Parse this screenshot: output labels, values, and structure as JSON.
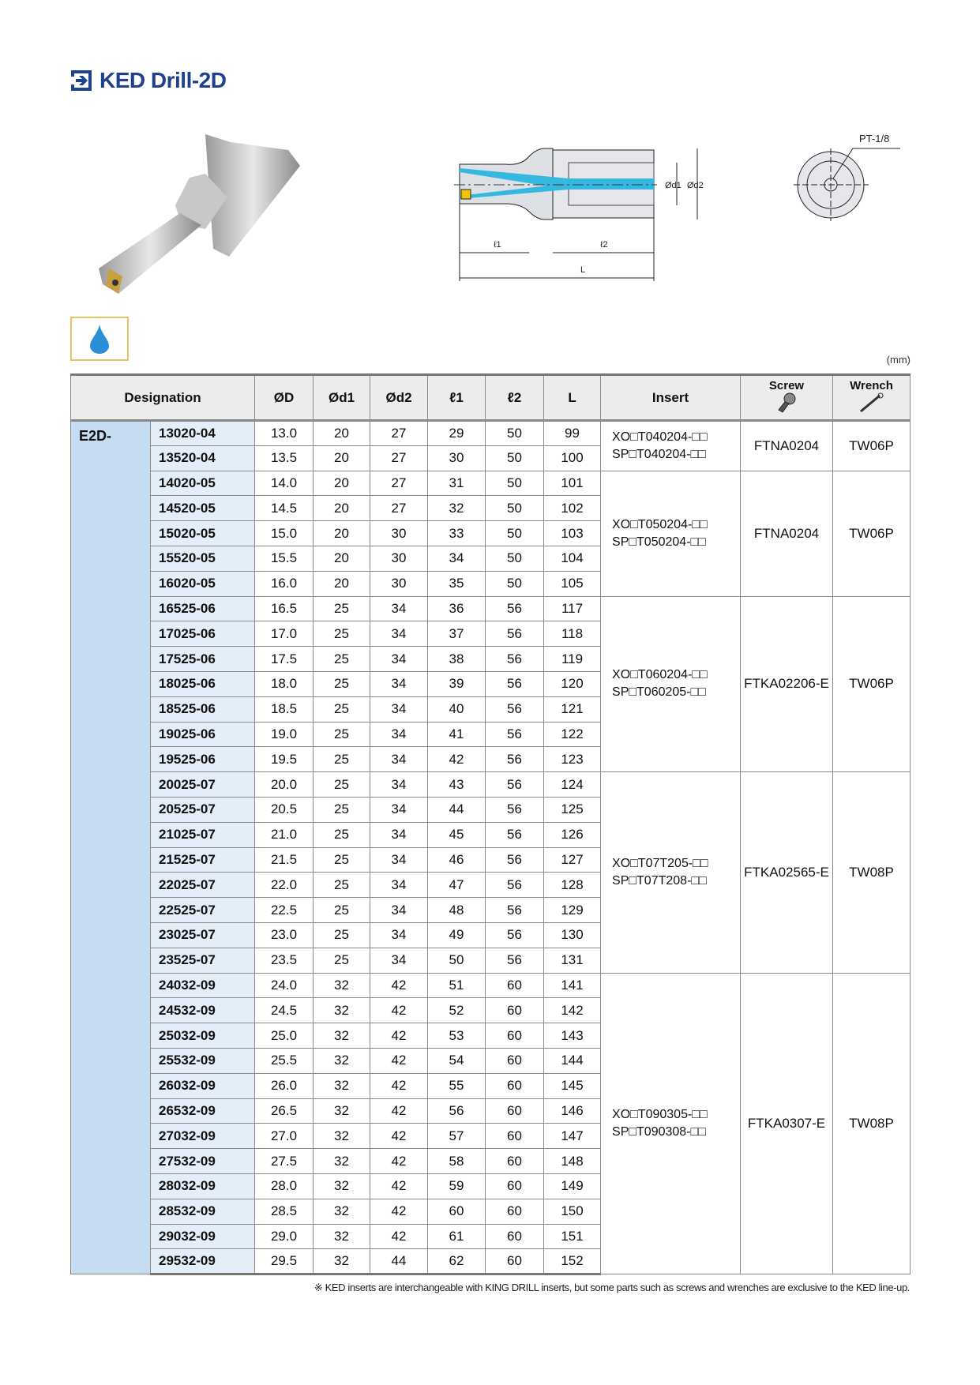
{
  "title": "KED Drill-2D",
  "drawing_labels": {
    "D": "ØD",
    "d1": "Ød1",
    "d2": "Ød2",
    "l1": "ℓ1",
    "l2": "ℓ2",
    "L": "L",
    "port": "PT-1/8"
  },
  "unit": "(mm)",
  "colors": {
    "title": "#1f3f8f",
    "designation_bg": "#c5dcf1",
    "code_bg": "#e4eef9",
    "coolant": "#2a8fd6"
  },
  "table": {
    "headers": {
      "designation": "Designation",
      "D": "ØD",
      "d1": "Ød1",
      "d2": "Ød2",
      "l1": "ℓ1",
      "l2": "ℓ2",
      "L": "L",
      "insert": "Insert",
      "screw": "Screw",
      "wrench": "Wrench"
    },
    "prefix": "E2D-",
    "rows": [
      [
        "13020-04",
        "13.0",
        "20",
        "27",
        "29",
        "50",
        "99"
      ],
      [
        "13520-04",
        "13.5",
        "20",
        "27",
        "30",
        "50",
        "100"
      ],
      [
        "14020-05",
        "14.0",
        "20",
        "27",
        "31",
        "50",
        "101"
      ],
      [
        "14520-05",
        "14.5",
        "20",
        "27",
        "32",
        "50",
        "102"
      ],
      [
        "15020-05",
        "15.0",
        "20",
        "30",
        "33",
        "50",
        "103"
      ],
      [
        "15520-05",
        "15.5",
        "20",
        "30",
        "34",
        "50",
        "104"
      ],
      [
        "16020-05",
        "16.0",
        "20",
        "30",
        "35",
        "50",
        "105"
      ],
      [
        "16525-06",
        "16.5",
        "25",
        "34",
        "36",
        "56",
        "117"
      ],
      [
        "17025-06",
        "17.0",
        "25",
        "34",
        "37",
        "56",
        "118"
      ],
      [
        "17525-06",
        "17.5",
        "25",
        "34",
        "38",
        "56",
        "119"
      ],
      [
        "18025-06",
        "18.0",
        "25",
        "34",
        "39",
        "56",
        "120"
      ],
      [
        "18525-06",
        "18.5",
        "25",
        "34",
        "40",
        "56",
        "121"
      ],
      [
        "19025-06",
        "19.0",
        "25",
        "34",
        "41",
        "56",
        "122"
      ],
      [
        "19525-06",
        "19.5",
        "25",
        "34",
        "42",
        "56",
        "123"
      ],
      [
        "20025-07",
        "20.0",
        "25",
        "34",
        "43",
        "56",
        "124"
      ],
      [
        "20525-07",
        "20.5",
        "25",
        "34",
        "44",
        "56",
        "125"
      ],
      [
        "21025-07",
        "21.0",
        "25",
        "34",
        "45",
        "56",
        "126"
      ],
      [
        "21525-07",
        "21.5",
        "25",
        "34",
        "46",
        "56",
        "127"
      ],
      [
        "22025-07",
        "22.0",
        "25",
        "34",
        "47",
        "56",
        "128"
      ],
      [
        "22525-07",
        "22.5",
        "25",
        "34",
        "48",
        "56",
        "129"
      ],
      [
        "23025-07",
        "23.0",
        "25",
        "34",
        "49",
        "56",
        "130"
      ],
      [
        "23525-07",
        "23.5",
        "25",
        "34",
        "50",
        "56",
        "131"
      ],
      [
        "24032-09",
        "24.0",
        "32",
        "42",
        "51",
        "60",
        "141"
      ],
      [
        "24532-09",
        "24.5",
        "32",
        "42",
        "52",
        "60",
        "142"
      ],
      [
        "25032-09",
        "25.0",
        "32",
        "42",
        "53",
        "60",
        "143"
      ],
      [
        "25532-09",
        "25.5",
        "32",
        "42",
        "54",
        "60",
        "144"
      ],
      [
        "26032-09",
        "26.0",
        "32",
        "42",
        "55",
        "60",
        "145"
      ],
      [
        "26532-09",
        "26.5",
        "32",
        "42",
        "56",
        "60",
        "146"
      ],
      [
        "27032-09",
        "27.0",
        "32",
        "42",
        "57",
        "60",
        "147"
      ],
      [
        "27532-09",
        "27.5",
        "32",
        "42",
        "58",
        "60",
        "148"
      ],
      [
        "28032-09",
        "28.0",
        "32",
        "42",
        "59",
        "60",
        "149"
      ],
      [
        "28532-09",
        "28.5",
        "32",
        "42",
        "60",
        "60",
        "150"
      ],
      [
        "29032-09",
        "29.0",
        "32",
        "42",
        "61",
        "60",
        "151"
      ],
      [
        "29532-09",
        "29.5",
        "32",
        "44",
        "62",
        "60",
        "152"
      ]
    ],
    "groups": [
      {
        "rows": 2,
        "insert": [
          "XO□T040204-□□",
          "SP□T040204-□□"
        ],
        "screw": "FTNA0204",
        "wrench": "TW06P"
      },
      {
        "rows": 5,
        "insert": [
          "XO□T050204-□□",
          "SP□T050204-□□"
        ],
        "screw": "FTNA0204",
        "wrench": "TW06P"
      },
      {
        "rows": 7,
        "insert": [
          "XO□T060204-□□",
          "SP□T060205-□□"
        ],
        "screw": "FTKA02206-E",
        "wrench": "TW06P"
      },
      {
        "rows": 8,
        "insert": [
          "XO□T07T205-□□",
          "SP□T07T208-□□"
        ],
        "screw": "FTKA02565-E",
        "wrench": "TW08P"
      },
      {
        "rows": 12,
        "insert": [
          "XO□T090305-□□",
          "SP□T090308-□□"
        ],
        "screw": "FTKA0307-E",
        "wrench": "TW08P"
      }
    ]
  },
  "note": "※ KED inserts are interchangeable with KING DRILL inserts, but some parts such as screws and wrenches are exclusive to the KED line-up."
}
